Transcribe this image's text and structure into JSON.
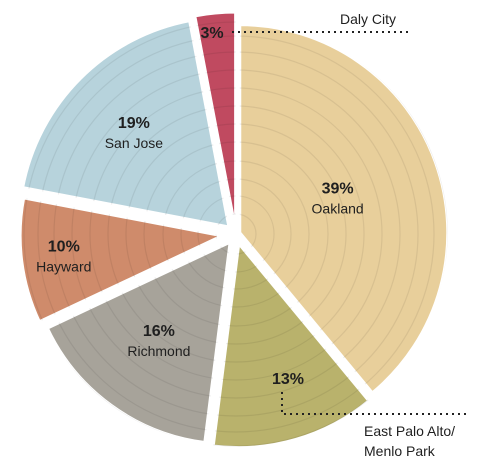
{
  "chart_data": {
    "type": "pie",
    "title": "",
    "slices": [
      {
        "label": "Oakland",
        "value": 39,
        "value_label": "39%",
        "color": "#e8cf9b"
      },
      {
        "label": "East Palo Alto/ Menlo Park",
        "label_lines": [
          "East Palo Alto/",
          "Menlo Park"
        ],
        "value": 13,
        "value_label": "13%",
        "color": "#b9b26c"
      },
      {
        "label": "Richmond",
        "value": 16,
        "value_label": "16%",
        "color": "#a7a39a"
      },
      {
        "label": "Hayward",
        "value": 10,
        "value_label": "10%",
        "color": "#cf8b6b"
      },
      {
        "label": "San Jose",
        "value": 19,
        "value_label": "19%",
        "color": "#b7d3dc"
      },
      {
        "label": "Daly City",
        "value": 3,
        "value_label": "3%",
        "color": "#c04a60"
      }
    ],
    "start_angle": "12 o'clock",
    "direction": "clockwise",
    "legend": "none"
  }
}
